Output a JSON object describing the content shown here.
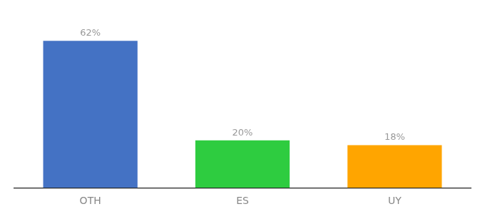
{
  "chart_data": {
    "type": "bar",
    "categories": [
      "OTH",
      "ES",
      "UY"
    ],
    "values": [
      62,
      20,
      18
    ],
    "value_labels": [
      "62%",
      "20%",
      "18%"
    ],
    "colors": [
      "#4472C4",
      "#2ECC40",
      "#FFA500"
    ],
    "data_labels": true,
    "ylim": [
      0,
      72
    ],
    "tick_labels": "x",
    "grid": false
  }
}
